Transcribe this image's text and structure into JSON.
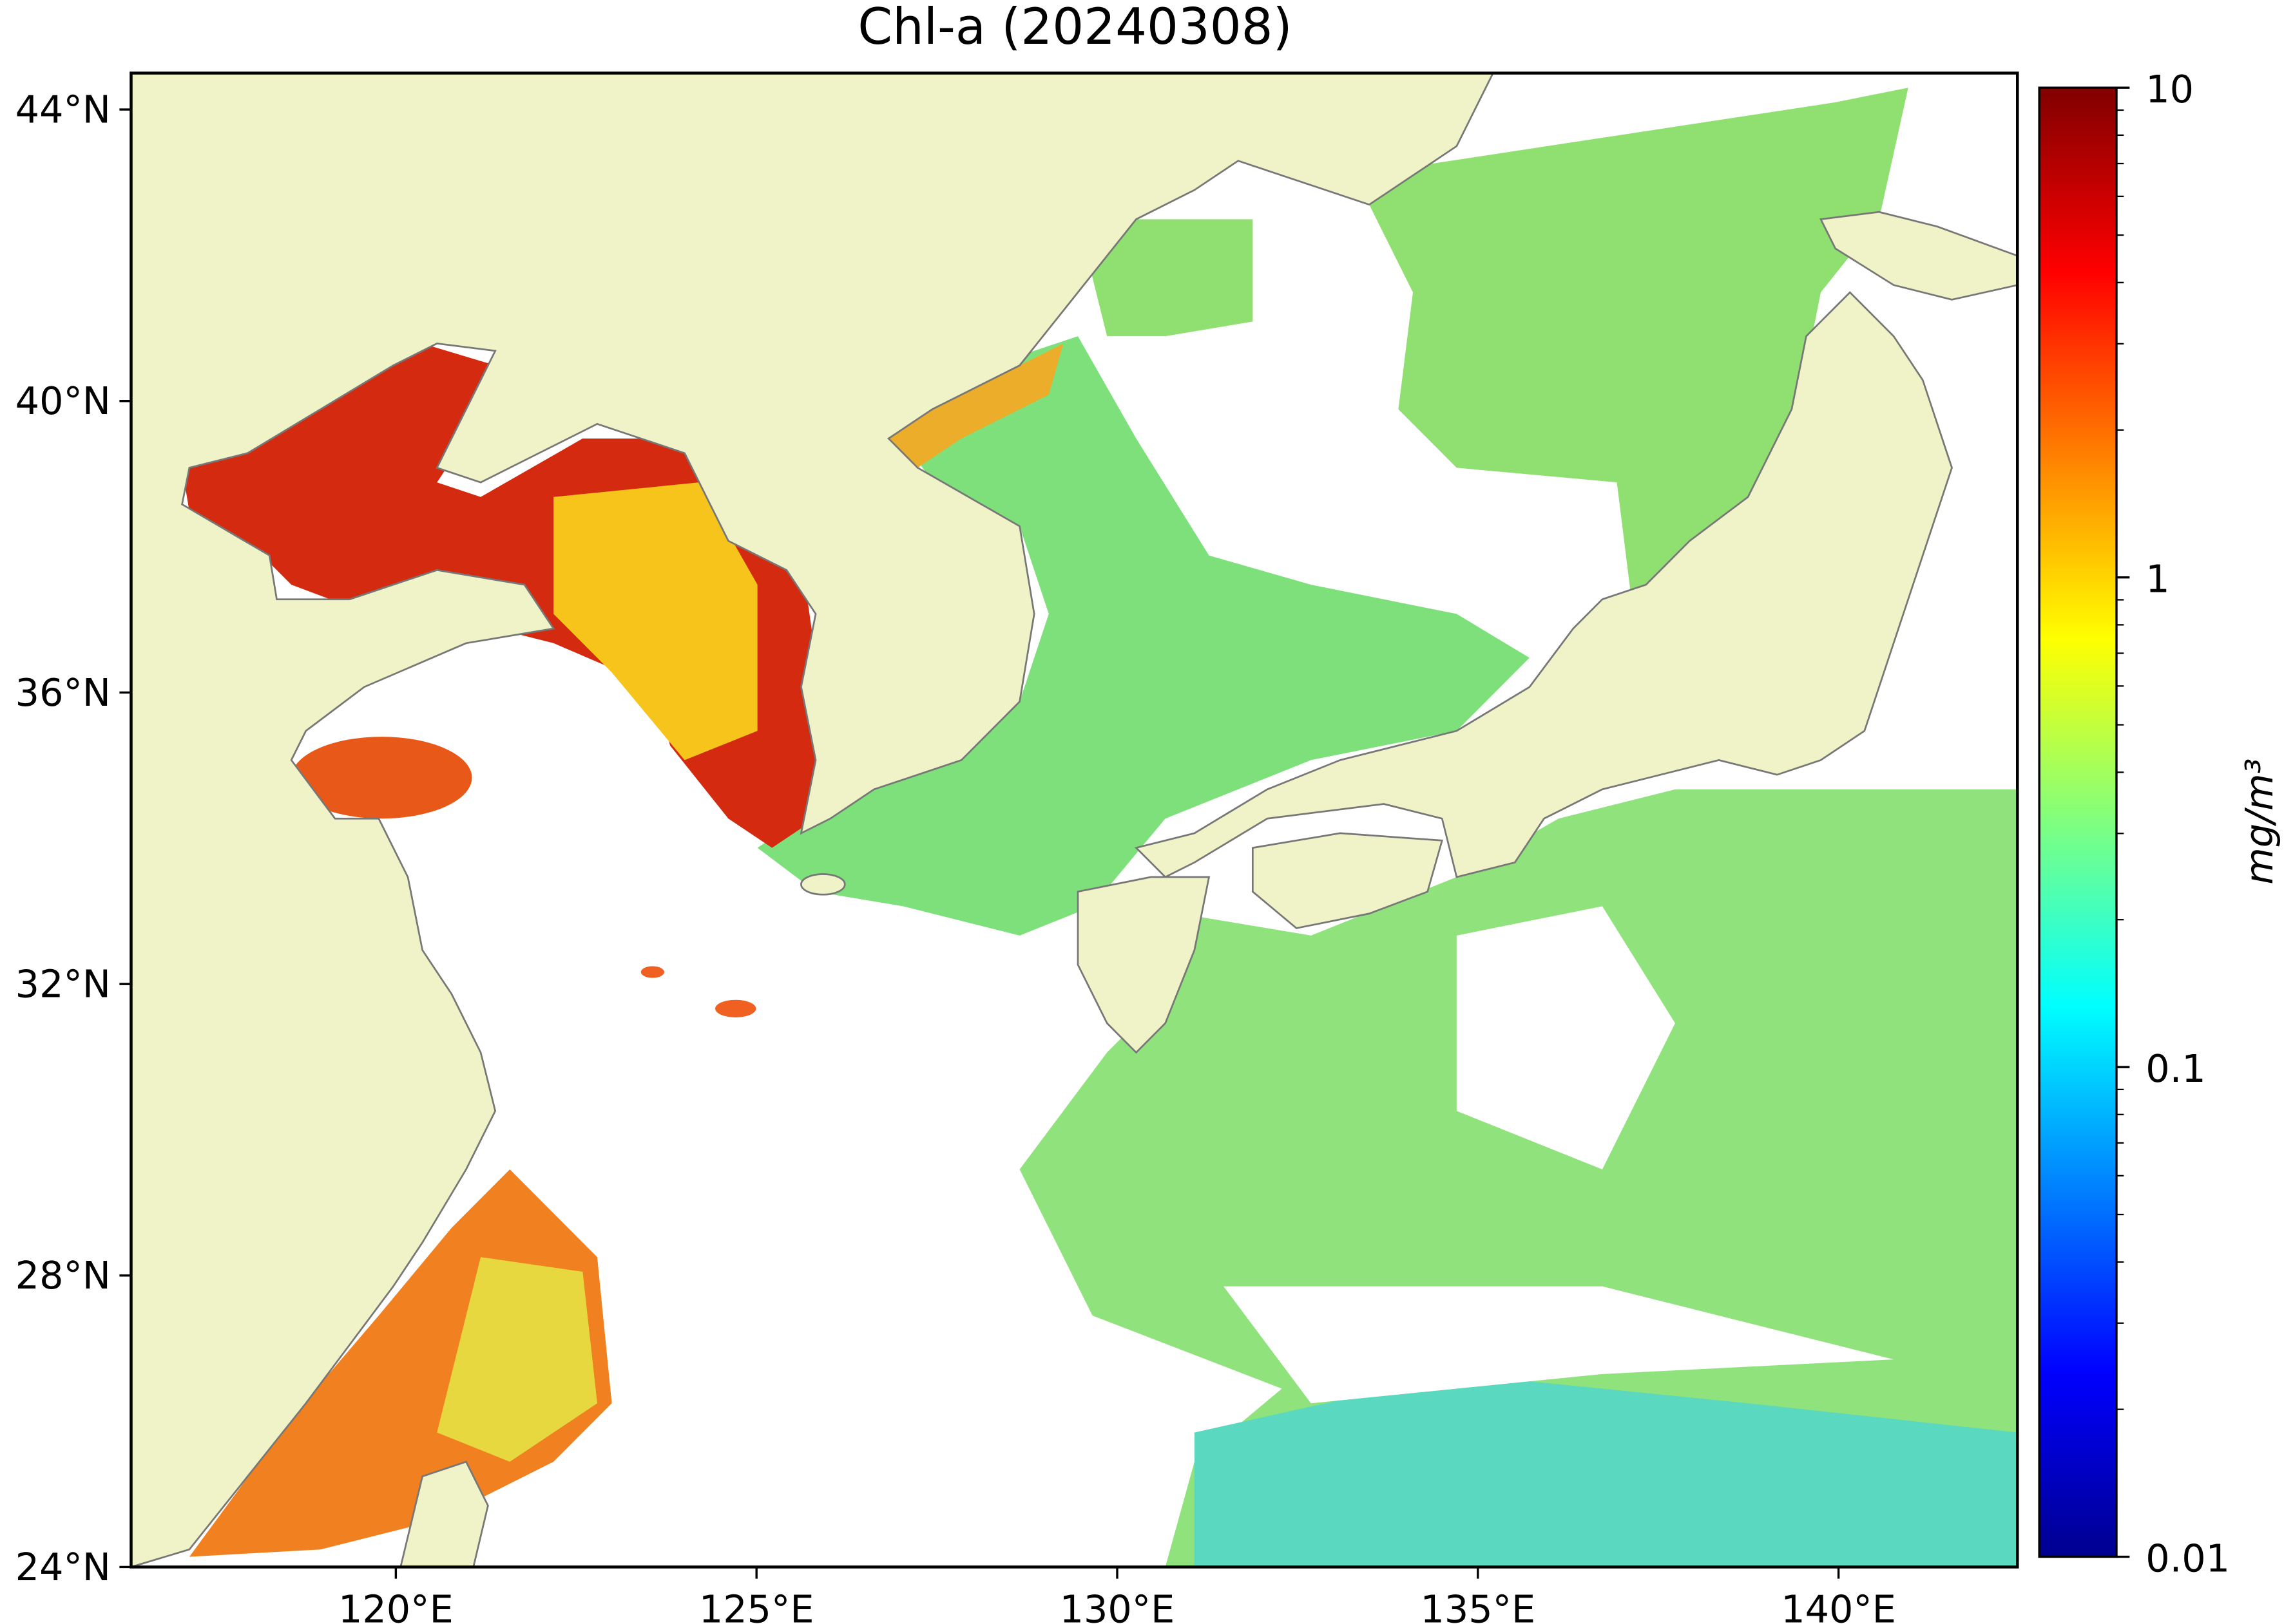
{
  "title": "Chl-a (20240308)",
  "map": {
    "xlim": [
      116.33,
      142.48
    ],
    "ylim": [
      24,
      44.5
    ],
    "xticks": [
      {
        "value": 120,
        "label": "120°E"
      },
      {
        "value": 125,
        "label": "125°E"
      },
      {
        "value": 130,
        "label": "130°E"
      },
      {
        "value": 135,
        "label": "135°E"
      },
      {
        "value": 140,
        "label": "140°E"
      }
    ],
    "yticks": [
      {
        "value": 24,
        "label": "24°N"
      },
      {
        "value": 28,
        "label": "28°N"
      },
      {
        "value": 32,
        "label": "32°N"
      },
      {
        "value": 36,
        "label": "36°N"
      },
      {
        "value": 40,
        "label": "40°N"
      },
      {
        "value": 44,
        "label": "44°N"
      }
    ]
  },
  "colorbar": {
    "label": "mg/m³",
    "scale": "log",
    "lim": [
      0.01,
      10
    ],
    "ticks": [
      0.01,
      0.1,
      1,
      10
    ],
    "minor_ticks": [
      0.02,
      0.03,
      0.04,
      0.05,
      0.06,
      0.07,
      0.08,
      0.09,
      0.2,
      0.3,
      0.4,
      0.5,
      0.6,
      0.7,
      0.8,
      0.9,
      2,
      3,
      4,
      5,
      6,
      7,
      8,
      9
    ]
  }
}
